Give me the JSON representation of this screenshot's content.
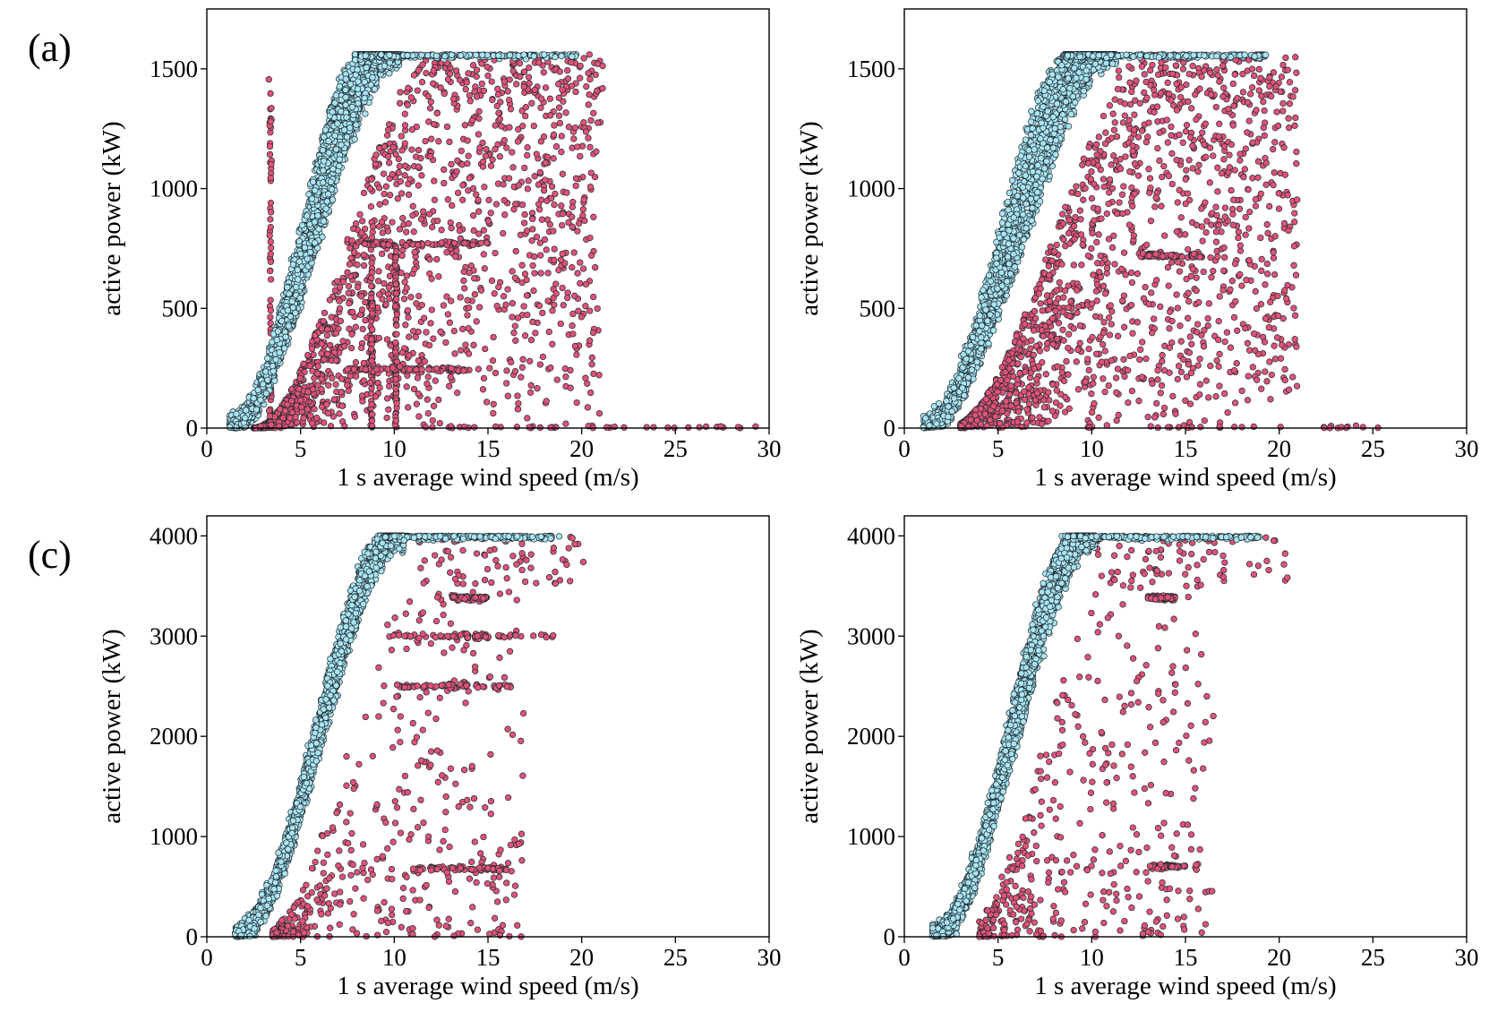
{
  "colors": {
    "normal": "#a9e4f2",
    "anomaly": "#e05377",
    "marker_edge": "#1f2a30",
    "axis": "#000000"
  },
  "chart_data": [
    {
      "type": "scatter",
      "panel_label": "(a)",
      "xlabel": "1 s average wind speed (m/s)",
      "ylabel": "active power (kW)",
      "xlim": [
        0,
        30
      ],
      "ylim": [
        0,
        1750
      ],
      "xticks": [
        0,
        5,
        10,
        15,
        20,
        25,
        30
      ],
      "yticks": [
        0,
        500,
        1000,
        1500
      ],
      "rated_power": 1560,
      "grid": false,
      "legend": "none",
      "series": [
        {
          "class": "normal",
          "color": "#a9e4f2",
          "power_curve": {
            "cut_in": 1.2,
            "v_rated_low": 8.2,
            "v_rated_high": 10.3,
            "v_max": 19.8
          }
        },
        {
          "class": "anomaly",
          "color": "#e05377",
          "below_curve_zone": {
            "v_min": 2.5,
            "v_max": 21
          },
          "streaks": [
            {
              "orientation": "vertical",
              "x": 3.4,
              "y_range": [
                0,
                1480
              ]
            },
            {
              "orientation": "vertical",
              "x": 8.8,
              "y_range": [
                0,
                780
              ]
            },
            {
              "orientation": "vertical",
              "x": 10.1,
              "y_range": [
                0,
                760
              ]
            },
            {
              "orientation": "horizontal",
              "y": 770,
              "x_range": [
                8,
                15
              ]
            },
            {
              "orientation": "horizontal",
              "y": 245,
              "x_range": [
                7.5,
                14
              ]
            },
            {
              "orientation": "horizontal",
              "y": 0,
              "x_range": [
                9,
                29.5
              ]
            }
          ]
        }
      ]
    },
    {
      "type": "scatter",
      "panel_label": "",
      "xlabel": "1 s average wind speed (m/s)",
      "ylabel": "active power (kW)",
      "xlim": [
        0,
        30
      ],
      "ylim": [
        0,
        1750
      ],
      "xticks": [
        0,
        5,
        10,
        15,
        20,
        25,
        30
      ],
      "yticks": [
        0,
        500,
        1000,
        1500
      ],
      "rated_power": 1560,
      "grid": false,
      "legend": "none",
      "series": [
        {
          "class": "normal",
          "color": "#a9e4f2",
          "power_curve": {
            "cut_in": 1.0,
            "v_rated_low": 8.6,
            "v_rated_high": 11.3,
            "v_max": 19.3
          }
        },
        {
          "class": "anomaly",
          "color": "#e05377",
          "below_curve_zone": {
            "v_min": 3.0,
            "v_max": 21
          },
          "streaks": [
            {
              "orientation": "horizontal",
              "y": 720,
              "x_range": [
                12.5,
                15.8
              ]
            },
            {
              "orientation": "horizontal",
              "y": 0,
              "x_range": [
                9,
                25.5
              ]
            }
          ]
        }
      ]
    },
    {
      "type": "scatter",
      "panel_label": "(c)",
      "xlabel": "1 s average wind speed (m/s)",
      "ylabel": "active power (kW)",
      "xlim": [
        0,
        30
      ],
      "ylim": [
        0,
        4200
      ],
      "xticks": [
        0,
        5,
        10,
        15,
        20,
        25,
        30
      ],
      "yticks": [
        0,
        1000,
        2000,
        3000,
        4000
      ],
      "rated_power": 4000,
      "grid": false,
      "legend": "none",
      "series": [
        {
          "class": "normal",
          "color": "#a9e4f2",
          "power_curve": {
            "cut_in": 1.5,
            "v_rated_low": 9.5,
            "v_rated_high": 10.5,
            "v_max": 18.8
          }
        },
        {
          "class": "anomaly",
          "color": "#e05377",
          "below_curve_zone": {
            "v_min": 3.5,
            "v_max": 17
          },
          "streaks": [
            {
              "orientation": "horizontal",
              "y": 3000,
              "x_range": [
                9.5,
                18.5
              ]
            },
            {
              "orientation": "horizontal",
              "y": 2500,
              "x_range": [
                10,
                16.5
              ]
            },
            {
              "orientation": "horizontal",
              "y": 3380,
              "x_range": [
                13,
                15
              ]
            },
            {
              "orientation": "horizontal",
              "y": 680,
              "x_range": [
                11,
                16
              ]
            }
          ]
        }
      ]
    },
    {
      "type": "scatter",
      "panel_label": "",
      "xlabel": "1 s average wind speed (m/s)",
      "ylabel": "active power (kW)",
      "xlim": [
        0,
        30
      ],
      "ylim": [
        0,
        4200
      ],
      "xticks": [
        0,
        5,
        10,
        15,
        20,
        25,
        30
      ],
      "yticks": [
        0,
        1000,
        2000,
        3000,
        4000
      ],
      "rated_power": 4000,
      "grid": false,
      "legend": "none",
      "series": [
        {
          "class": "normal",
          "color": "#a9e4f2",
          "power_curve": {
            "cut_in": 1.5,
            "v_rated_low": 9.0,
            "v_rated_high": 10.2,
            "v_max": 19
          }
        },
        {
          "class": "anomaly",
          "color": "#e05377",
          "below_curve_zone": {
            "v_min": 4.0,
            "v_max": 16.5
          },
          "streaks": [
            {
              "orientation": "horizontal",
              "y": 3380,
              "x_range": [
                13,
                14.5
              ]
            },
            {
              "orientation": "horizontal",
              "y": 700,
              "x_range": [
                13,
                15
              ]
            }
          ]
        }
      ]
    }
  ]
}
